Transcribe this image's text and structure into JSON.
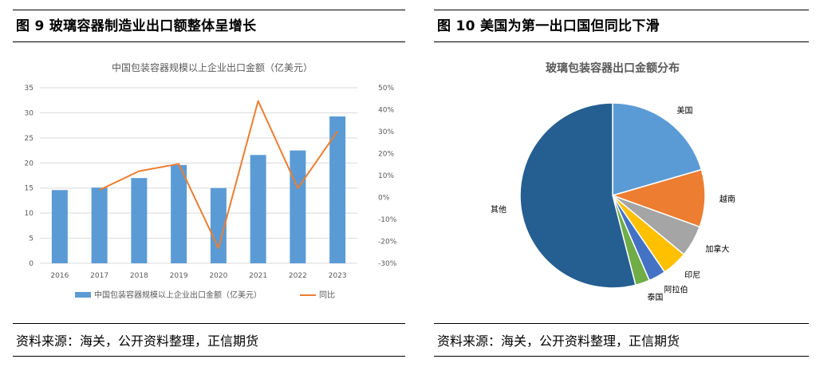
{
  "left_panel": {
    "figure_title": "图 9  玻璃容器制造业出口额整体呈增长",
    "source": "资料来源：海关，公开资料整理，正信期货"
  },
  "right_panel": {
    "figure_title": "图 10  美国为第一出口国但同比下滑",
    "source": "资料来源：海关，公开资料整理，正信期货"
  },
  "chart_data": [
    {
      "type": "bar",
      "title": "中国包装容器规模以上企业出口金额（亿美元）",
      "categories": [
        "2016",
        "2017",
        "2018",
        "2019",
        "2020",
        "2021",
        "2022",
        "2023"
      ],
      "series": [
        {
          "name": "中国包装容器规模以上企业出口金额（亿美元）",
          "type": "bar",
          "axis": "left",
          "values": [
            14.6,
            15.1,
            17.0,
            19.6,
            15.0,
            21.6,
            22.5,
            29.3
          ],
          "color": "#5B9BD5"
        },
        {
          "name": "同比",
          "type": "line",
          "axis": "right",
          "values": [
            null,
            3.4,
            12.0,
            15.3,
            -23.1,
            44.0,
            4.2,
            30.2
          ],
          "color": "#ED7D31"
        }
      ],
      "ylim_left": [
        0,
        35
      ],
      "yticks_left": [
        "0",
        "5",
        "10",
        "15",
        "20",
        "25",
        "30",
        "35"
      ],
      "ylim_right": [
        -30,
        50
      ],
      "yticks_right": [
        "-30%",
        "-20%",
        "-10%",
        "0%",
        "10%",
        "20%",
        "30%",
        "40%",
        "50%"
      ],
      "grid": true,
      "legend_position": "bottom"
    },
    {
      "type": "pie",
      "title": "玻璃包装容器出口金额分布",
      "labels": [
        "美国",
        "越南",
        "加拿大",
        "印尼",
        "阿拉伯",
        "泰国",
        "其他"
      ],
      "values": [
        20.5,
        10.0,
        5.5,
        4.5,
        3.0,
        2.5,
        54.0
      ],
      "colors": [
        "#5B9BD5",
        "#ED7D31",
        "#A5A5A5",
        "#FFC000",
        "#4472C4",
        "#70AD47",
        "#255E91"
      ]
    }
  ]
}
